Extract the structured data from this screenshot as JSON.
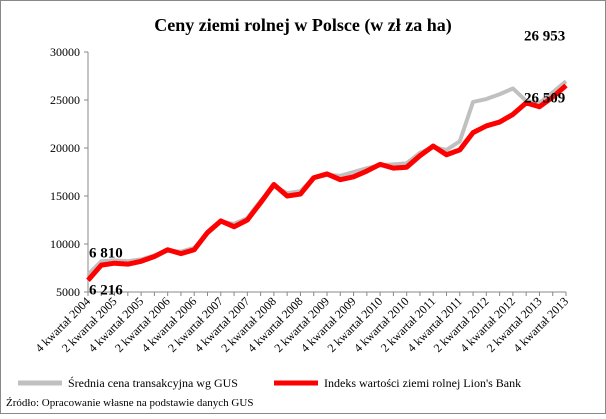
{
  "chart_data": {
    "type": "line",
    "title": "Ceny ziemi rolnej w Polsce (w zł za ha)",
    "categories": [
      "4 kwartał 2004",
      null,
      "2 kwartał 2005",
      null,
      "4 kwartał 2005",
      null,
      "2 kwartał 2006",
      null,
      "4 kwartał 2006",
      null,
      "2 kwartał 2007",
      null,
      "4 kwartał 2007",
      null,
      "2 kwartał 2008",
      null,
      "4 kwartał 2008",
      null,
      "2 kwartał 2009",
      null,
      "4 kwartał 2009",
      null,
      "2 kwartał 2010",
      null,
      "4 kwartał 2010",
      null,
      "2 kwartał 2011",
      null,
      "4 kwartał 2011",
      null,
      "2 kwartał 2012",
      null,
      "4 kwartał 2012",
      null,
      "2 kwartał 2013",
      null,
      "4 kwartał 2013"
    ],
    "series": [
      {
        "name": "Średnia cena transakcyjna wg GUS",
        "color": "#c0c0c0",
        "values": [
          6810,
          8200,
          8300,
          8200,
          8400,
          8800,
          9300,
          9200,
          9600,
          11100,
          12300,
          12100,
          12700,
          14500,
          16000,
          15300,
          15500,
          16900,
          17200,
          17100,
          17500,
          17900,
          18200,
          18300,
          18400,
          19500,
          20100,
          19800,
          20700,
          24800,
          25100,
          25600,
          26200,
          24900,
          24700,
          25800,
          26953
        ],
        "value_labels": [
          "6 810",
          null,
          null,
          null,
          null,
          null,
          null,
          null,
          null,
          null,
          null,
          null,
          null,
          null,
          null,
          null,
          null,
          null,
          null,
          null,
          null,
          null,
          null,
          null,
          null,
          null,
          null,
          null,
          null,
          null,
          null,
          null,
          null,
          null,
          null,
          null,
          "26 953"
        ]
      },
      {
        "name": "Indeks wartości ziemi rolnej Lion's Bank",
        "color": "#ff0000",
        "values": [
          6216,
          7800,
          8000,
          7900,
          8200,
          8700,
          9400,
          9000,
          9400,
          11200,
          12400,
          11800,
          12500,
          14300,
          16200,
          15000,
          15200,
          16900,
          17300,
          16700,
          17000,
          17600,
          18300,
          17900,
          18000,
          19200,
          20200,
          19300,
          19800,
          21600,
          22300,
          22700,
          23500,
          24700,
          24300,
          25300,
          26509
        ],
        "value_labels": [
          "6 216",
          null,
          null,
          null,
          null,
          null,
          null,
          null,
          null,
          null,
          null,
          null,
          null,
          null,
          null,
          null,
          null,
          null,
          null,
          null,
          null,
          null,
          null,
          null,
          null,
          null,
          null,
          null,
          null,
          null,
          null,
          null,
          null,
          null,
          null,
          null,
          "26 509"
        ]
      }
    ],
    "ylim": [
      5000,
      30000
    ],
    "yticks": [
      5000,
      10000,
      15000,
      20000,
      25000,
      30000
    ],
    "source": "Źródło: Opracowanie własne na podstawie danych GUS"
  }
}
